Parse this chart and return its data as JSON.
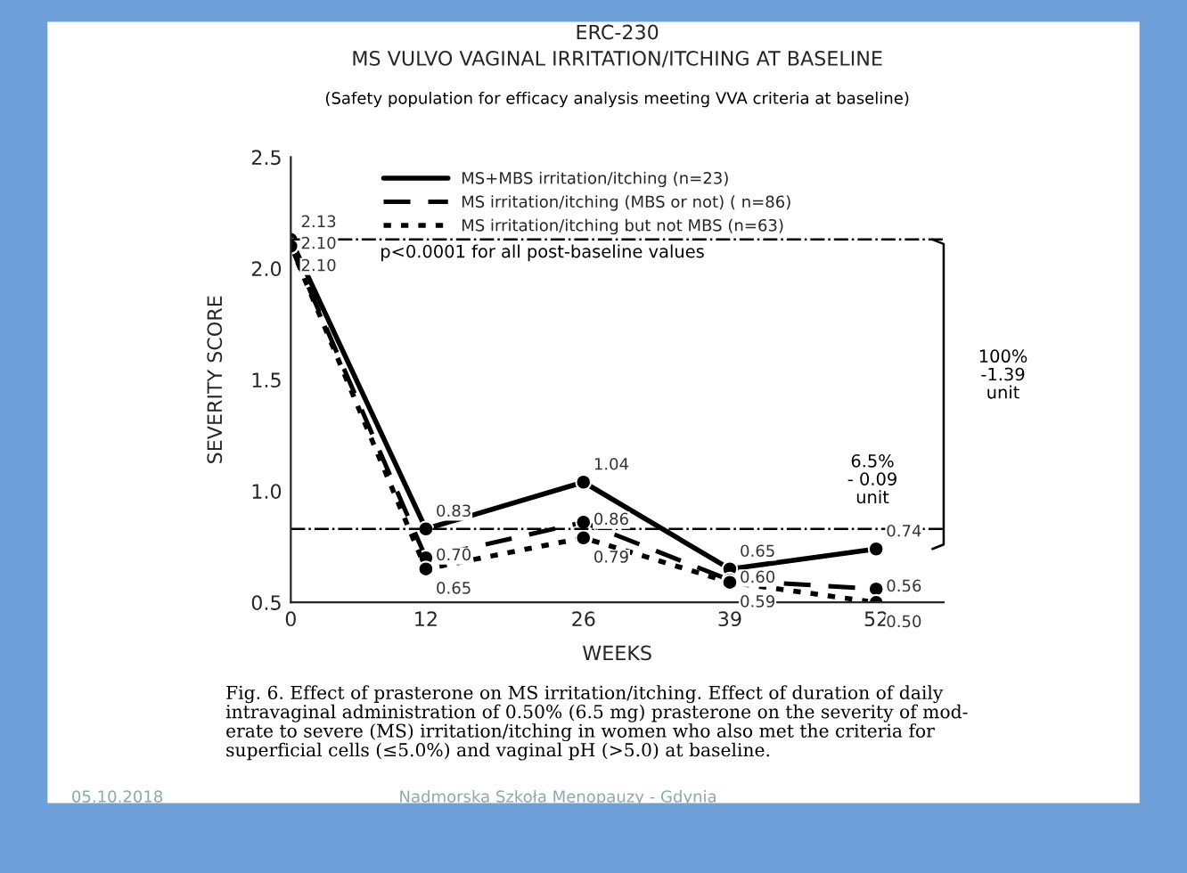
{
  "chart_data": {
    "type": "line",
    "title": "ERC-230",
    "subtitle": "MS VULVO VAGINAL IRRITATION/ITCHING AT BASELINE",
    "xlabel": "WEEKS",
    "ylabel": "SEVERITY SCORE",
    "x": [
      0,
      12,
      26,
      39,
      52
    ],
    "xlim": [
      0,
      58
    ],
    "xticks": [
      0,
      12,
      26,
      39,
      52
    ],
    "ylim": [
      0.5,
      2.5
    ],
    "yticks": [
      0.5,
      {
        "value": 1.0,
        "label": "1.0"
      },
      1.5,
      {
        "value": 2.0,
        "label": "2.0"
      },
      2.5
    ],
    "series": [
      {
        "name": "MS+MBS irritation/itching (n=23)",
        "color": "#000000",
        "line_style": "solid",
        "values": [
          2.13,
          0.83,
          1.04,
          0.65,
          0.74
        ],
        "value_labels": [
          "2.13",
          "0.83",
          "1.04",
          "0.65",
          "0.74"
        ]
      },
      {
        "name": "MS irritation/itching (MBS or not) ( n=86)",
        "color": "#000000",
        "line_style": "dashed",
        "values": [
          2.1,
          0.7,
          0.86,
          0.6,
          0.56
        ],
        "value_labels": [
          "2.10",
          "0.70",
          "0.86",
          "0.60",
          "0.56"
        ]
      },
      {
        "name": "MS irritation/itching but not MBS (n=63)",
        "color": "#000000",
        "line_style": "dotted",
        "values": [
          2.1,
          0.65,
          0.79,
          0.59,
          0.5
        ],
        "value_labels": [
          "2.10",
          "0.65",
          "0.79",
          "0.59",
          "0.50"
        ]
      }
    ],
    "ref_lines": [
      {
        "axis": "y",
        "value": 2.13,
        "color": "#000000",
        "line_style": "dashdot"
      },
      {
        "axis": "y",
        "value": 0.83,
        "color": "#000000",
        "line_style": "dashdot"
      }
    ],
    "marker": "circle",
    "legend": "top left",
    "grid": false,
    "annotations": [
      "(Safety population for efficacy analysis meeting VVA criteria at baseline)",
      "p<0.0001 for all post-baseline values",
      "100%\n-1.39\nunit",
      "6.5%\n- 0.09\nunit",
      "Fig. 6. Effect of prasterone on MS irritation/itching. Effect of duration of daily\nintravaginal administration of 0.50% (6.5 mg) prasterone on the severity of mod-\nerate to severe (MS) irritation/itching in women who also met the criteria for\nsuperficial cells (≤5.0%) and vaginal pH (>5.0) at baseline.",
      "05.10.2018",
      "Nadmorska Szkoła Menopauzy - Gdynia"
    ]
  }
}
